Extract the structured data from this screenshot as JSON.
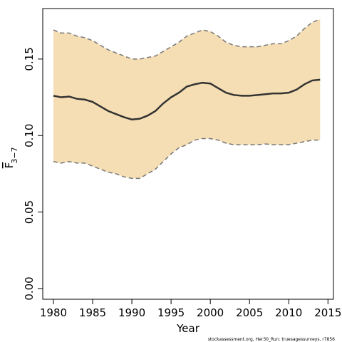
{
  "chart_data": {
    "type": "line",
    "x_label": "Year",
    "y_label": "F",
    "y_label_sub": "3−7",
    "footer": "stockassessment.org, Her30_Run: truesagessurveys, r7856",
    "x": [
      1980,
      1981,
      1982,
      1983,
      1984,
      1985,
      1986,
      1987,
      1988,
      1989,
      1990,
      1991,
      1992,
      1993,
      1994,
      1995,
      1996,
      1997,
      1998,
      1999,
      2000,
      2001,
      2002,
      2003,
      2004,
      2005,
      2006,
      2007,
      2008,
      2009,
      2010,
      2011,
      2012,
      2013,
      2014
    ],
    "values": [
      0.126,
      0.125,
      0.1255,
      0.124,
      0.1235,
      0.122,
      0.119,
      0.116,
      0.114,
      0.112,
      0.1105,
      0.111,
      0.113,
      0.116,
      0.121,
      0.125,
      0.128,
      0.132,
      0.1335,
      0.1345,
      0.134,
      0.131,
      0.128,
      0.1265,
      0.126,
      0.126,
      0.1265,
      0.127,
      0.1275,
      0.1275,
      0.128,
      0.13,
      0.1335,
      0.136,
      0.1365
    ],
    "upper": [
      0.169,
      0.167,
      0.167,
      0.165,
      0.164,
      0.162,
      0.159,
      0.156,
      0.154,
      0.152,
      0.15,
      0.15,
      0.151,
      0.152,
      0.155,
      0.158,
      0.161,
      0.165,
      0.167,
      0.169,
      0.168,
      0.165,
      0.161,
      0.159,
      0.158,
      0.158,
      0.158,
      0.159,
      0.16,
      0.16,
      0.162,
      0.165,
      0.17,
      0.174,
      0.176
    ],
    "lower": [
      0.083,
      0.082,
      0.083,
      0.082,
      0.082,
      0.08,
      0.078,
      0.076,
      0.075,
      0.073,
      0.072,
      0.072,
      0.075,
      0.078,
      0.083,
      0.088,
      0.092,
      0.094,
      0.097,
      0.098,
      0.098,
      0.097,
      0.095,
      0.094,
      0.094,
      0.094,
      0.094,
      0.0945,
      0.094,
      0.094,
      0.094,
      0.095,
      0.096,
      0.097,
      0.097
    ],
    "line_color": "#333333",
    "band_color": "#f5deb3",
    "band_line_color": "#777777",
    "xlim": [
      1978.64,
      2015.7
    ],
    "xticks": [
      1980,
      1985,
      1990,
      1995,
      2000,
      2005,
      2010,
      2015
    ],
    "ylim": [
      -0.007,
      0.183
    ],
    "yticks": [
      {
        "value": 0,
        "label": "0.00"
      },
      {
        "value": 0.05,
        "label": "0.05"
      },
      {
        "value": 0.1,
        "label": "0.10"
      },
      {
        "value": 0.15,
        "label": "0.15"
      }
    ]
  }
}
